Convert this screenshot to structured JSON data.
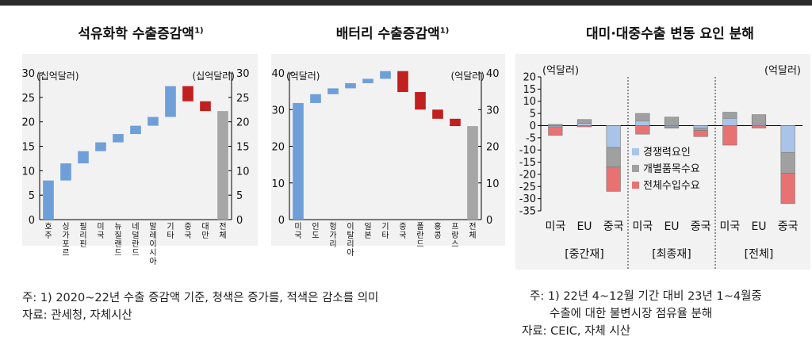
{
  "charts_meta": {
    "left_title": "석유화학 수출증감액",
    "left_title_sup": "1)",
    "mid_title": "배터리 수출증감액",
    "mid_title_sup": "1)",
    "right_title": "대미·대중수출 변동 요인 분해"
  },
  "colors": {
    "increase": "#6f9fd8",
    "decrease": "#c0201f",
    "total": "#a6a6a6",
    "competitiveness": "#a9c4e8",
    "product": "#a0a0a0",
    "import_demand": "#e87272",
    "legend_competitiveness_text": "#2a64b0",
    "legend_product_text": "#444444",
    "legend_import_text": "#c0201f"
  },
  "notes": {
    "left_note1": "주: 1) 2020~22년 수출 증감액 기준, 청색은 증가를, 적색은 감소를 의미",
    "left_note2": "자료: 관세청, 자체시산",
    "right_note1": "주: 1) 22년 4~12월 기간 대비 23년 1~4월중",
    "right_note2": "수출에 대한 불변시장 점유율 분해",
    "right_note3": "자료: CEIC, 자체 시산"
  },
  "chart_data": [
    {
      "type": "bar",
      "subtype": "waterfall",
      "title": "석유화학 수출증감액",
      "unit_left": "(십억달러)",
      "unit_right": "(십억달러)",
      "ylim": [
        0,
        30
      ],
      "yticks": [
        0,
        5,
        10,
        15,
        20,
        25,
        30
      ],
      "categories": [
        "호주",
        "싱가포르",
        "필리핀",
        "미국",
        "뉴질랜드",
        "네덜란드",
        "말레이시아",
        "기타",
        "중국",
        "대만",
        "전체"
      ],
      "bars": [
        {
          "start": 0,
          "end": 8,
          "kind": "increase"
        },
        {
          "start": 8,
          "end": 11.5,
          "kind": "increase"
        },
        {
          "start": 11.5,
          "end": 14,
          "kind": "increase"
        },
        {
          "start": 14,
          "end": 15.8,
          "kind": "increase"
        },
        {
          "start": 15.8,
          "end": 17.5,
          "kind": "increase"
        },
        {
          "start": 17.5,
          "end": 19.2,
          "kind": "increase"
        },
        {
          "start": 19.2,
          "end": 21,
          "kind": "increase"
        },
        {
          "start": 21,
          "end": 27.3,
          "kind": "increase"
        },
        {
          "start": 27.3,
          "end": 24.2,
          "kind": "decrease"
        },
        {
          "start": 24.2,
          "end": 22.2,
          "kind": "decrease"
        },
        {
          "start": 0,
          "end": 22.2,
          "kind": "total"
        }
      ]
    },
    {
      "type": "bar",
      "subtype": "waterfall",
      "title": "배터리 수출증감액",
      "unit_left": "(억달러)",
      "unit_right": "(억달러)",
      "ylim": [
        0,
        40
      ],
      "yticks": [
        0,
        10,
        20,
        30,
        40
      ],
      "categories": [
        "미국",
        "인도",
        "헝가리",
        "이탈리아",
        "일본",
        "기타",
        "중국",
        "폴란드",
        "홍콩",
        "프랑스",
        "전체"
      ],
      "bars": [
        {
          "start": 0,
          "end": 31.8,
          "kind": "increase"
        },
        {
          "start": 31.8,
          "end": 34.2,
          "kind": "increase"
        },
        {
          "start": 34.2,
          "end": 35.8,
          "kind": "increase"
        },
        {
          "start": 35.8,
          "end": 37.2,
          "kind": "increase"
        },
        {
          "start": 37.2,
          "end": 38.4,
          "kind": "increase"
        },
        {
          "start": 38.4,
          "end": 40.5,
          "kind": "increase"
        },
        {
          "start": 40.5,
          "end": 34.8,
          "kind": "decrease"
        },
        {
          "start": 34.8,
          "end": 30,
          "kind": "decrease"
        },
        {
          "start": 30,
          "end": 27.5,
          "kind": "decrease"
        },
        {
          "start": 27.5,
          "end": 25.5,
          "kind": "decrease"
        },
        {
          "start": 0,
          "end": 25.5,
          "kind": "total"
        }
      ]
    },
    {
      "type": "bar",
      "subtype": "stacked",
      "title": "대미·대중수출 변동 요인 분해",
      "unit_left": "(억달러)",
      "unit_right": "(억달러)",
      "ylim": [
        -35,
        20
      ],
      "yticks": [
        20,
        15,
        10,
        5,
        0,
        -5,
        -10,
        -15,
        -20,
        -25,
        -30,
        -35
      ],
      "groups": [
        "[중간재]",
        "[최종재]",
        "[전체]"
      ],
      "categories": [
        "미국",
        "EU",
        "중국",
        "미국",
        "EU",
        "중국",
        "미국",
        "EU",
        "중국"
      ],
      "series": [
        {
          "name": "경쟁력요인",
          "key": "competitiveness",
          "values": [
            -0.5,
            1,
            -9,
            2,
            -0.5,
            -1,
            3,
            0.5,
            -11
          ]
        },
        {
          "name": "개별품목수요",
          "key": "product",
          "values": [
            0.5,
            1.5,
            -8,
            3,
            3.5,
            -1,
            2.5,
            4,
            -8.5
          ]
        },
        {
          "name": "전체수입수요",
          "key": "import_demand",
          "values": [
            -3.5,
            -0.5,
            -10,
            -3.5,
            -0.5,
            -2.5,
            -8,
            -1,
            -12.5
          ]
        }
      ],
      "legend_position": "center"
    }
  ]
}
